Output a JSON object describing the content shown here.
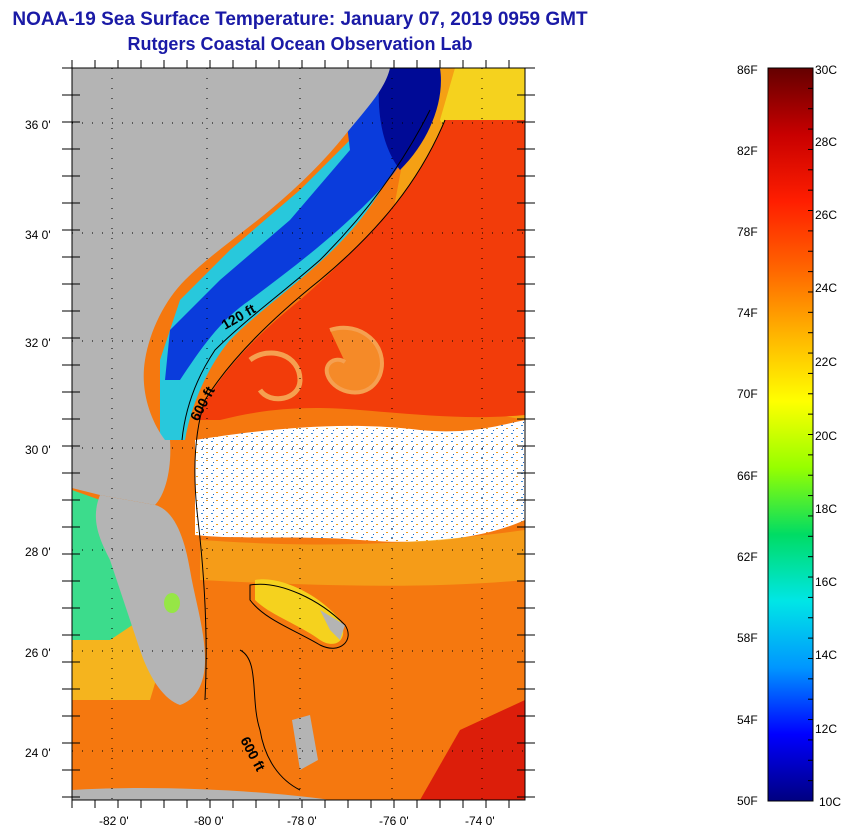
{
  "header": {
    "title": "NOAA-19 Sea Surface Temperature:  January 07, 2019 0959 GMT",
    "subtitle": "Rutgers Coastal Ocean Observation Lab"
  },
  "map": {
    "lat_labels": [
      "36 0'",
      "34 0'",
      "32 0'",
      "30 0'",
      "28 0'",
      "26 0'",
      "24 0'"
    ],
    "lon_labels": [
      "-82 0'",
      "-80 0'",
      "-78 0'",
      "-76 0'",
      "-74 0'"
    ],
    "contours": [
      "120 ft",
      "600 ft",
      "600 ft"
    ],
    "colors": {
      "land": "#b4b4b4",
      "cloud": "#ffffff",
      "gulf_stream": "#f23c0a",
      "warm_sea": "#f5780f",
      "mid_sea": "#f5c814",
      "cool_coast": "#28c8dc",
      "cold_coast": "#0a3cdc",
      "very_cold": "#000a96"
    }
  },
  "colorbar": {
    "fahrenheit": [
      "86F",
      "82F",
      "78F",
      "74F",
      "70F",
      "66F",
      "62F",
      "58F",
      "54F",
      "50F"
    ],
    "celsius": [
      "30C",
      "28C",
      "26C",
      "24C",
      "22C",
      "20C",
      "18C",
      "16C",
      "14C",
      "12C",
      "10C"
    ],
    "stops": [
      "#000080",
      "#0000ff",
      "#0096ff",
      "#00e6e6",
      "#00dc64",
      "#96ff00",
      "#ffff00",
      "#ffb400",
      "#ff6400",
      "#ff1e00",
      "#c80000",
      "#640000"
    ]
  }
}
